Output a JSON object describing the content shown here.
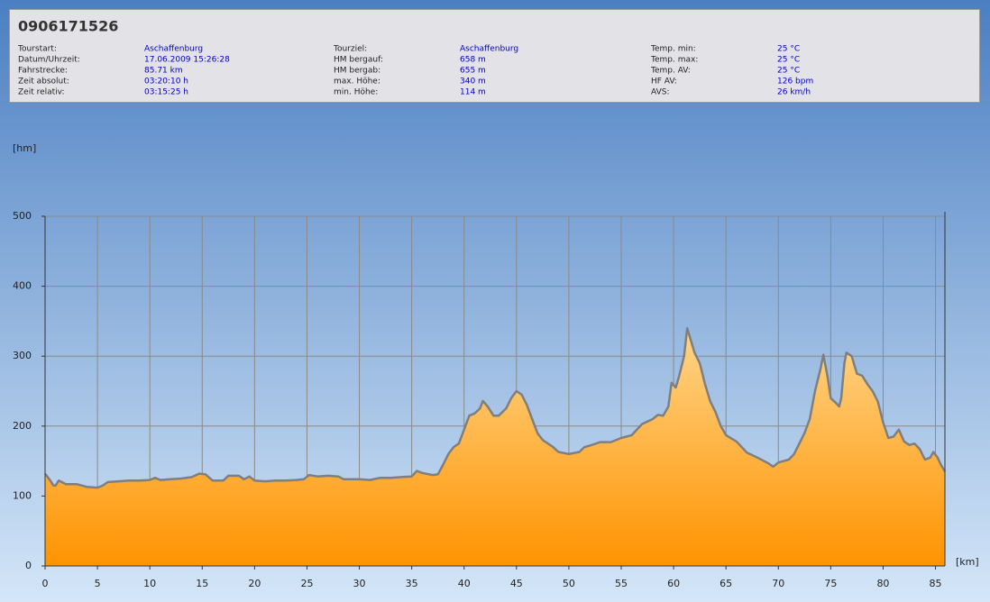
{
  "header": {
    "title": "0906171526",
    "columns": [
      [
        {
          "label": "Tourstart:",
          "value": "Aschaffenburg"
        },
        {
          "label": "Datum/Uhrzeit:",
          "value": "17.06.2009 15:26:28"
        },
        {
          "label": "Fahrstrecke:",
          "value": "85.71 km"
        },
        {
          "label": "Zeit absolut:",
          "value": "03:20:10 h"
        },
        {
          "label": "Zeit relativ:",
          "value": "03:15:25 h"
        }
      ],
      [
        {
          "label": "Tourziel:",
          "value": "Aschaffenburg"
        },
        {
          "label": "HM bergauf:",
          "value": "658 m"
        },
        {
          "label": "HM bergab:",
          "value": "655 m"
        },
        {
          "label": "max. Höhe:",
          "value": "340 m"
        },
        {
          "label": "min. Höhe:",
          "value": "114 m"
        }
      ],
      [
        {
          "label": "Temp. min:",
          "value": "25 °C"
        },
        {
          "label": "Temp. max:",
          "value": "25 °C"
        },
        {
          "label": "Temp. AV:",
          "value": "25 °C"
        },
        {
          "label": "HF AV:",
          "value": "126 bpm"
        },
        {
          "label": "AVS:",
          "value": "26 km/h"
        }
      ]
    ]
  },
  "chart_data": {
    "type": "area",
    "y_label": "[hm]",
    "x_label": "[km]",
    "xlim": [
      0,
      85.9
    ],
    "ylim": [
      0,
      500
    ],
    "xticks": [
      0,
      5,
      10,
      15,
      20,
      25,
      30,
      35,
      40,
      45,
      50,
      55,
      60,
      65,
      70,
      75,
      80,
      85
    ],
    "yticks": [
      0,
      100,
      200,
      300,
      400,
      500
    ],
    "grid": true,
    "line_color": "#7f7f7f",
    "fill_top": "#ffd58a",
    "fill_bottom": "#ff9300",
    "x": [
      0,
      0.5,
      0.8,
      1,
      1.3,
      2,
      3,
      4,
      5,
      5.5,
      6,
      7,
      8,
      9,
      10,
      10.5,
      11,
      12,
      13,
      14,
      14.7,
      15.3,
      16,
      17,
      17.5,
      18.5,
      19,
      19.5,
      20,
      21,
      22,
      23,
      24,
      24.7,
      25.2,
      26,
      27,
      28,
      28.5,
      30,
      31,
      32,
      33,
      34,
      35,
      35.5,
      36,
      37,
      37.5,
      38,
      38.5,
      39,
      39.5,
      40,
      40.5,
      41,
      41.5,
      41.8,
      42.3,
      42.8,
      43.3,
      44,
      44.5,
      45,
      45.5,
      46,
      46.5,
      47,
      47.5,
      48,
      48.5,
      49,
      50,
      51,
      51.5,
      52,
      53,
      54,
      55,
      56,
      56.5,
      57,
      58,
      58.5,
      59,
      59.5,
      59.8,
      60.2,
      60.5,
      61,
      61.3,
      61.7,
      62,
      62.5,
      63,
      63.5,
      64,
      64.5,
      65,
      66,
      67,
      68,
      69,
      69.5,
      70,
      71,
      71.5,
      72,
      72.5,
      73,
      73.5,
      74,
      74.3,
      74.7,
      75,
      75.5,
      75.8,
      76,
      76.3,
      76.5,
      77,
      77.5,
      78,
      78.5,
      79,
      79.5,
      80,
      80.5,
      81,
      81.5,
      82,
      82.5,
      83,
      83.5,
      84,
      84.5,
      84.8,
      85.2,
      85.5,
      85.9
    ],
    "values": [
      132,
      122,
      115,
      115,
      122,
      117,
      117,
      113,
      112,
      115,
      120,
      121,
      122,
      122,
      123,
      126,
      123,
      124,
      125,
      127,
      132,
      131,
      122,
      122,
      129,
      129,
      124,
      128,
      122,
      121,
      122,
      122,
      123,
      124,
      130,
      128,
      129,
      128,
      124,
      124,
      123,
      126,
      126,
      127,
      128,
      136,
      133,
      130,
      131,
      145,
      160,
      170,
      175,
      195,
      215,
      218,
      225,
      236,
      227,
      215,
      215,
      225,
      240,
      250,
      245,
      230,
      210,
      190,
      180,
      175,
      170,
      163,
      160,
      163,
      170,
      172,
      177,
      177,
      183,
      187,
      195,
      203,
      210,
      216,
      215,
      228,
      262,
      255,
      270,
      300,
      340,
      320,
      305,
      290,
      260,
      235,
      220,
      200,
      187,
      178,
      162,
      155,
      147,
      142,
      148,
      152,
      160,
      175,
      190,
      210,
      250,
      280,
      302,
      270,
      240,
      233,
      228,
      240,
      290,
      305,
      300,
      275,
      272,
      260,
      250,
      235,
      205,
      183,
      185,
      195,
      178,
      173,
      175,
      167,
      152,
      155,
      163,
      155,
      145,
      135
    ]
  }
}
